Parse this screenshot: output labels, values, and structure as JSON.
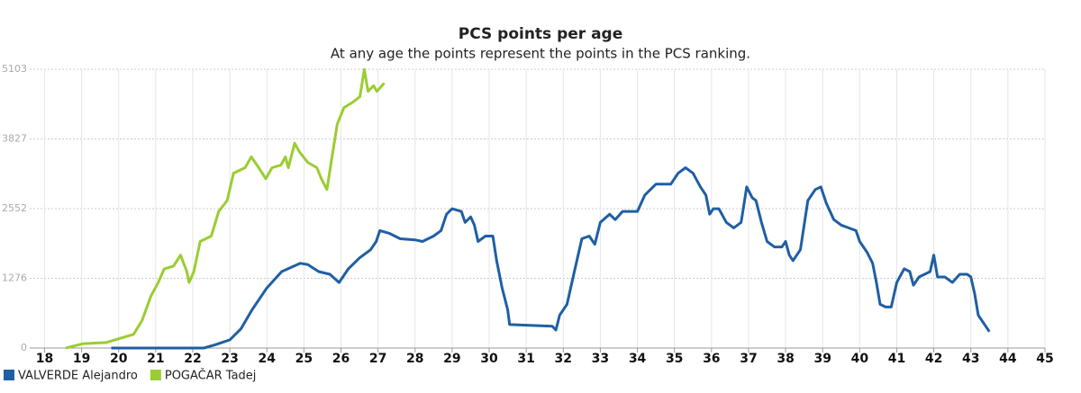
{
  "chart_data": {
    "type": "line",
    "title": "PCS points per age",
    "subtitle": "At any age the points represent the points in the PCS ranking.",
    "xlim": [
      17.6,
      45
    ],
    "xticks": [
      18,
      19,
      20,
      21,
      22,
      23,
      24,
      25,
      26,
      27,
      28,
      29,
      30,
      31,
      32,
      33,
      34,
      35,
      36,
      37,
      38,
      39,
      40,
      41,
      42,
      43,
      44,
      45
    ],
    "ylim": [
      0,
      5103
    ],
    "yticks": [
      0,
      1276,
      2552,
      3827,
      5103
    ],
    "grid": true,
    "series": [
      {
        "name": "VALVERDE Alejandro",
        "color": "#1f5fa3",
        "x": [
          19.8,
          22.3,
          22.6,
          23,
          23.3,
          23.6,
          24,
          24.4,
          24.9,
          25.1,
          25.4,
          25.7,
          25.95,
          26.2,
          26.5,
          26.8,
          26.95,
          27.05,
          27.3,
          27.6,
          28,
          28.2,
          28.5,
          28.7,
          28.85,
          29,
          29.25,
          29.35,
          29.5,
          29.6,
          29.7,
          29.9,
          30.1,
          30.2,
          30.35,
          30.5,
          30.55,
          31.7,
          31.8,
          31.9,
          32.1,
          32.3,
          32.5,
          32.7,
          32.85,
          33,
          33.25,
          33.4,
          33.6,
          34,
          34.2,
          34.5,
          34.9,
          35.1,
          35.3,
          35.5,
          35.7,
          35.85,
          35.95,
          36.05,
          36.2,
          36.4,
          36.6,
          36.8,
          36.95,
          37.1,
          37.2,
          37.35,
          37.5,
          37.7,
          37.9,
          38,
          38.1,
          38.2,
          38.4,
          38.6,
          38.8,
          38.95,
          39.1,
          39.3,
          39.5,
          39.7,
          39.9,
          40,
          40.2,
          40.35,
          40.45,
          40.55,
          40.7,
          40.85,
          41,
          41.2,
          41.35,
          41.45,
          41.6,
          41.9,
          42,
          42.1,
          42.3,
          42.5,
          42.7,
          42.9,
          43,
          43.1,
          43.2,
          43.4,
          43.5
        ],
        "values": [
          0,
          0,
          60,
          150,
          350,
          700,
          1100,
          1400,
          1550,
          1530,
          1400,
          1350,
          1200,
          1450,
          1650,
          1800,
          1950,
          2150,
          2100,
          2000,
          1980,
          1950,
          2050,
          2150,
          2450,
          2550,
          2500,
          2300,
          2400,
          2250,
          1950,
          2050,
          2050,
          1600,
          1100,
          700,
          430,
          400,
          330,
          600,
          800,
          1400,
          2000,
          2050,
          1900,
          2300,
          2450,
          2350,
          2500,
          2500,
          2800,
          3000,
          3000,
          3200,
          3300,
          3200,
          2950,
          2800,
          2450,
          2550,
          2550,
          2300,
          2200,
          2300,
          2950,
          2750,
          2700,
          2300,
          1950,
          1850,
          1850,
          1950,
          1700,
          1600,
          1800,
          2700,
          2900,
          2950,
          2650,
          2350,
          2250,
          2200,
          2150,
          1950,
          1750,
          1550,
          1200,
          800,
          750,
          750,
          1200,
          1450,
          1400,
          1150,
          1300,
          1400,
          1700,
          1300,
          1300,
          1200,
          1350,
          1350,
          1300,
          1000,
          600,
          400,
          300
        ]
      },
      {
        "name": "POGAČAR Tadej",
        "color": "#9acd32",
        "x": [
          18.57,
          19.05,
          19.66,
          20.4,
          20.63,
          20.87,
          21.07,
          21.23,
          21.48,
          21.67,
          21.84,
          21.9,
          22.03,
          22.2,
          22.5,
          22.7,
          22.93,
          23.1,
          23.41,
          23.58,
          23.78,
          23.97,
          24.14,
          24.38,
          24.5,
          24.58,
          24.75,
          24.87,
          25.1,
          25.35,
          25.47,
          25.62,
          25.76,
          25.9,
          26.08,
          26.32,
          26.51,
          26.63,
          26.73,
          26.88,
          26.97,
          27.17
        ],
        "values": [
          0,
          80,
          100,
          250,
          500,
          950,
          1200,
          1450,
          1500,
          1700,
          1400,
          1200,
          1400,
          1950,
          2050,
          2500,
          2700,
          3200,
          3300,
          3500,
          3300,
          3100,
          3300,
          3350,
          3500,
          3300,
          3750,
          3600,
          3400,
          3300,
          3100,
          2900,
          3500,
          4100,
          4400,
          4500,
          4600,
          5100,
          4700,
          4800,
          4700,
          4850
        ]
      }
    ]
  }
}
